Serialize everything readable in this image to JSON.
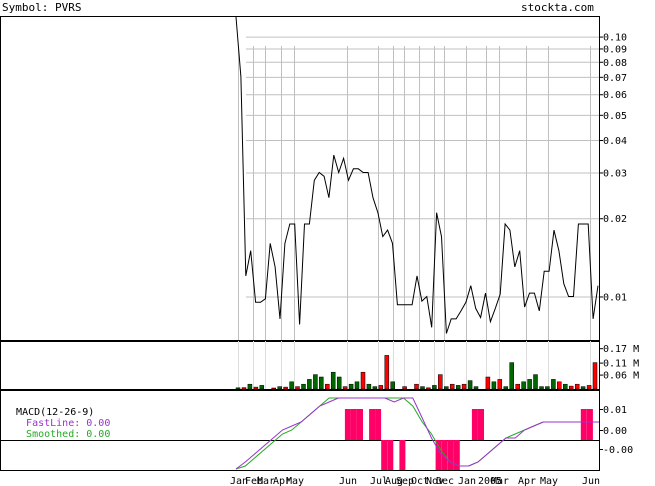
{
  "header": {
    "symbol_label": "Symbol: PVRS",
    "site": "stockta.com"
  },
  "macd_legend": {
    "title": "MACD(12-26-9)",
    "fast_label": "FastLine: 0.00",
    "smoothed_label": "Smoothed: 0.00",
    "fast_color": "#9933cc",
    "smoothed_color": "#22aa22"
  },
  "colors": {
    "price_line": "#000000",
    "volume_up": "#ff0000",
    "volume_down": "#006600",
    "macd_hist": "#ff0066",
    "grid": "#c0c0c0"
  },
  "chart_data": [
    {
      "type": "line",
      "name": "price",
      "scale": "log",
      "ylim": [
        0.0068,
        0.12
      ],
      "yticks": [
        "0.10",
        "0.09",
        "0.08",
        "0.07",
        "0.06",
        "0.05",
        "0.04",
        "0.03",
        "0.02",
        "0.01"
      ],
      "ytick_values": [
        0.1,
        0.09,
        0.08,
        0.07,
        0.06,
        0.05,
        0.04,
        0.03,
        0.02,
        0.01
      ],
      "months": [
        "Jan",
        "Feb",
        "Mar",
        "Apr",
        "May",
        "Jun",
        "Jul",
        "Aug",
        "Sep",
        "Oct",
        "Nov",
        "Dec",
        "Jan",
        "2005",
        "Mar",
        "Apr",
        "May",
        "Jun"
      ],
      "values": [
        0.12,
        0.07,
        0.012,
        0.015,
        0.0095,
        0.0095,
        0.0098,
        0.016,
        0.013,
        0.0082,
        0.016,
        0.019,
        0.019,
        0.0078,
        0.019,
        0.019,
        0.028,
        0.03,
        0.029,
        0.024,
        0.035,
        0.03,
        0.034,
        0.028,
        0.031,
        0.031,
        0.03,
        0.03,
        0.024,
        0.021,
        0.017,
        0.018,
        0.016,
        0.0093,
        0.0093,
        0.0093,
        0.0093,
        0.012,
        0.0096,
        0.01,
        0.0076,
        0.021,
        0.017,
        0.0072,
        0.0082,
        0.0082,
        0.0088,
        0.0095,
        0.011,
        0.009,
        0.0083,
        0.0103,
        0.008,
        0.009,
        0.0102,
        0.019,
        0.018,
        0.013,
        0.015,
        0.0091,
        0.0103,
        0.0103,
        0.0088,
        0.0125,
        0.0125,
        0.018,
        0.015,
        0.0112,
        0.01,
        0.01,
        0.019,
        0.019,
        0.019,
        0.0082,
        0.011
      ]
    },
    {
      "type": "bar",
      "name": "volume",
      "yticks": [
        "0.17 M",
        "0.11 M",
        "0.06 M"
      ],
      "ytick_values": [
        0.17,
        0.11,
        0.06
      ],
      "ylim": [
        0,
        0.2
      ],
      "values": [
        0.005,
        0.006,
        0.02,
        0.008,
        0.015,
        0.0,
        0.004,
        0.01,
        0.008,
        0.03,
        0.01,
        0.02,
        0.04,
        0.06,
        0.05,
        0.02,
        0.07,
        0.05,
        0.01,
        0.02,
        0.03,
        0.07,
        0.02,
        0.01,
        0.015,
        0.14,
        0.03,
        0.0,
        0.01,
        0.0,
        0.02,
        0.01,
        0.005,
        0.015,
        0.06,
        0.01,
        0.02,
        0.015,
        0.02,
        0.035,
        0.01,
        0.0,
        0.05,
        0.03,
        0.04,
        0.01,
        0.11,
        0.02,
        0.03,
        0.04,
        0.06,
        0.01,
        0.01,
        0.04,
        0.03,
        0.02,
        0.012,
        0.02,
        0.01,
        0.015,
        0.11
      ],
      "up": [
        false,
        true,
        false,
        true,
        false,
        true,
        true,
        false,
        true,
        false,
        true,
        false,
        false,
        false,
        false,
        true,
        false,
        false,
        true,
        false,
        false,
        true,
        false,
        false,
        true,
        true,
        false,
        true,
        true,
        false,
        true,
        false,
        true,
        false,
        true,
        false,
        true,
        false,
        true,
        false,
        false,
        true,
        true,
        false,
        true,
        false,
        false,
        true,
        false,
        false,
        false,
        false,
        false,
        false,
        true,
        false,
        true,
        true,
        false,
        true,
        true
      ]
    },
    {
      "type": "bar",
      "name": "MACD",
      "yticks": [
        "0.01",
        "0.00",
        "-0.00"
      ],
      "ytick_values": [
        0.01,
        0.0,
        -0.005
      ],
      "ylim": [
        -0.008,
        0.012
      ],
      "histogram": [
        0,
        0,
        0,
        0,
        0,
        0,
        0,
        0,
        0,
        0,
        0,
        0,
        0,
        0,
        0,
        0,
        0,
        0,
        0.01,
        0.01,
        0.01,
        0,
        0.01,
        0.01,
        -0.003,
        -0.006,
        0,
        -0.006,
        0,
        0,
        0,
        0,
        0,
        -0.006,
        -0.006,
        -0.006,
        -0.006,
        0,
        0,
        0.01,
        0.01,
        0,
        0,
        0,
        0,
        0,
        0,
        0,
        0,
        0,
        0,
        0,
        0,
        0,
        0,
        0,
        0,
        0.01,
        0.01,
        0
      ],
      "fast": [
        -0.008,
        -0.006,
        -0.004,
        -0.002,
        0,
        0.002,
        0.003,
        0.004,
        0.006,
        0.008,
        0.009,
        0.01,
        0.01,
        0.01,
        0.01,
        0.01,
        0.01,
        0.009,
        0.01,
        0.01,
        0.005,
        0.0,
        -0.004,
        -0.006,
        -0.007,
        -0.007,
        -0.006,
        -0.004,
        -0.002,
        0,
        0.0,
        0.002,
        0.003,
        0.004,
        0.004,
        0.004,
        0.004,
        0.004,
        0.004,
        0.004
      ],
      "smoothed": [
        -0.008,
        -0.007,
        -0.005,
        -0.003,
        -0.001,
        0.001,
        0.002,
        0.004,
        0.006,
        0.008,
        0.01,
        0.01,
        0.01,
        0.01,
        0.01,
        0.01,
        0.01,
        0.01,
        0.01,
        0.008,
        0.004,
        0.001,
        -0.003,
        -0.006,
        -0.007,
        -0.007,
        -0.006,
        -0.004,
        -0.002,
        0,
        0.001,
        0.002,
        0.003,
        0.004,
        0.004,
        0.004,
        0.004,
        0.004,
        0.004,
        0.004
      ]
    }
  ]
}
